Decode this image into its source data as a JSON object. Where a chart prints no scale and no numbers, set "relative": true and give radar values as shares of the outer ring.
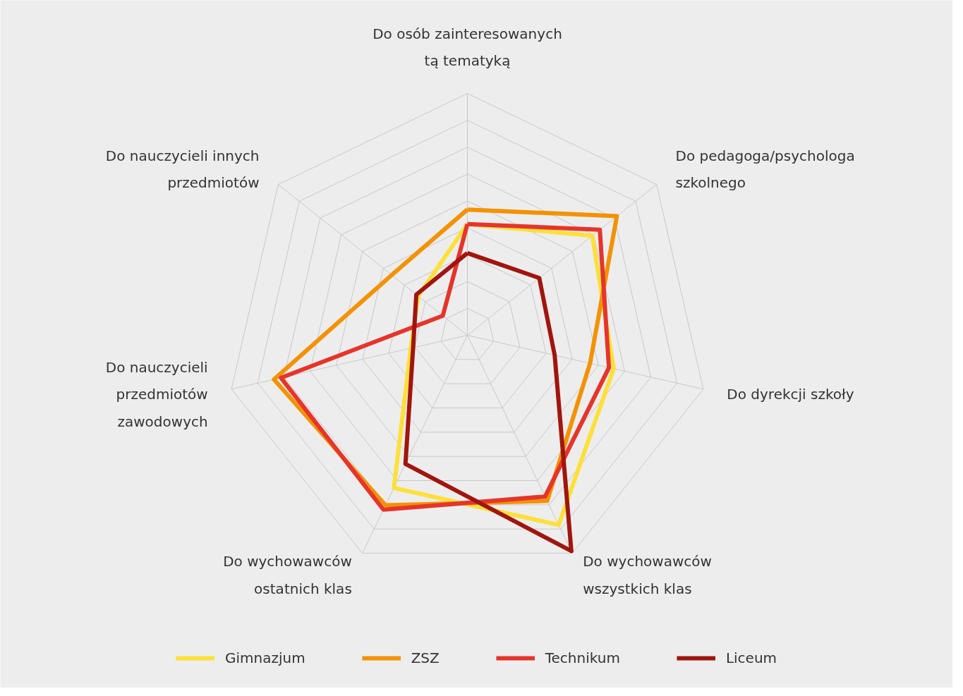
{
  "chart_data": {
    "type": "radar",
    "relative": true,
    "legend": "bottom",
    "categories": [
      "Do osób zainteresowanych\ntą tematyką",
      "Do pedagoga/psychologa\nszkolnego",
      "Do dyrekcji szkoły",
      "Do wychowawców\nwszystkich klas",
      "Do wychowawców\nostatnich klas",
      "Do nauczycieli\nprzedmiotów\nzawodowych",
      "Do nauczycieli innych\nprzedmiotów"
    ],
    "series": [
      {
        "name": "Gimnazjum",
        "color": "#fde03a",
        "values": [
          0.46,
          0.66,
          0.62,
          0.87,
          0.7,
          0.24,
          0.26
        ]
      },
      {
        "name": "ZSZ",
        "color": "#f39200",
        "values": [
          0.52,
          0.79,
          0.52,
          0.76,
          0.78,
          0.82,
          0.4
        ]
      },
      {
        "name": "Technikum",
        "color": "#e5352b",
        "values": [
          0.46,
          0.7,
          0.6,
          0.74,
          0.8,
          0.79,
          0.13
        ]
      },
      {
        "name": "Liceum",
        "color": "#a0150e",
        "values": [
          0.34,
          0.38,
          0.37,
          0.99,
          0.59,
          0.23,
          0.27
        ]
      }
    ]
  }
}
